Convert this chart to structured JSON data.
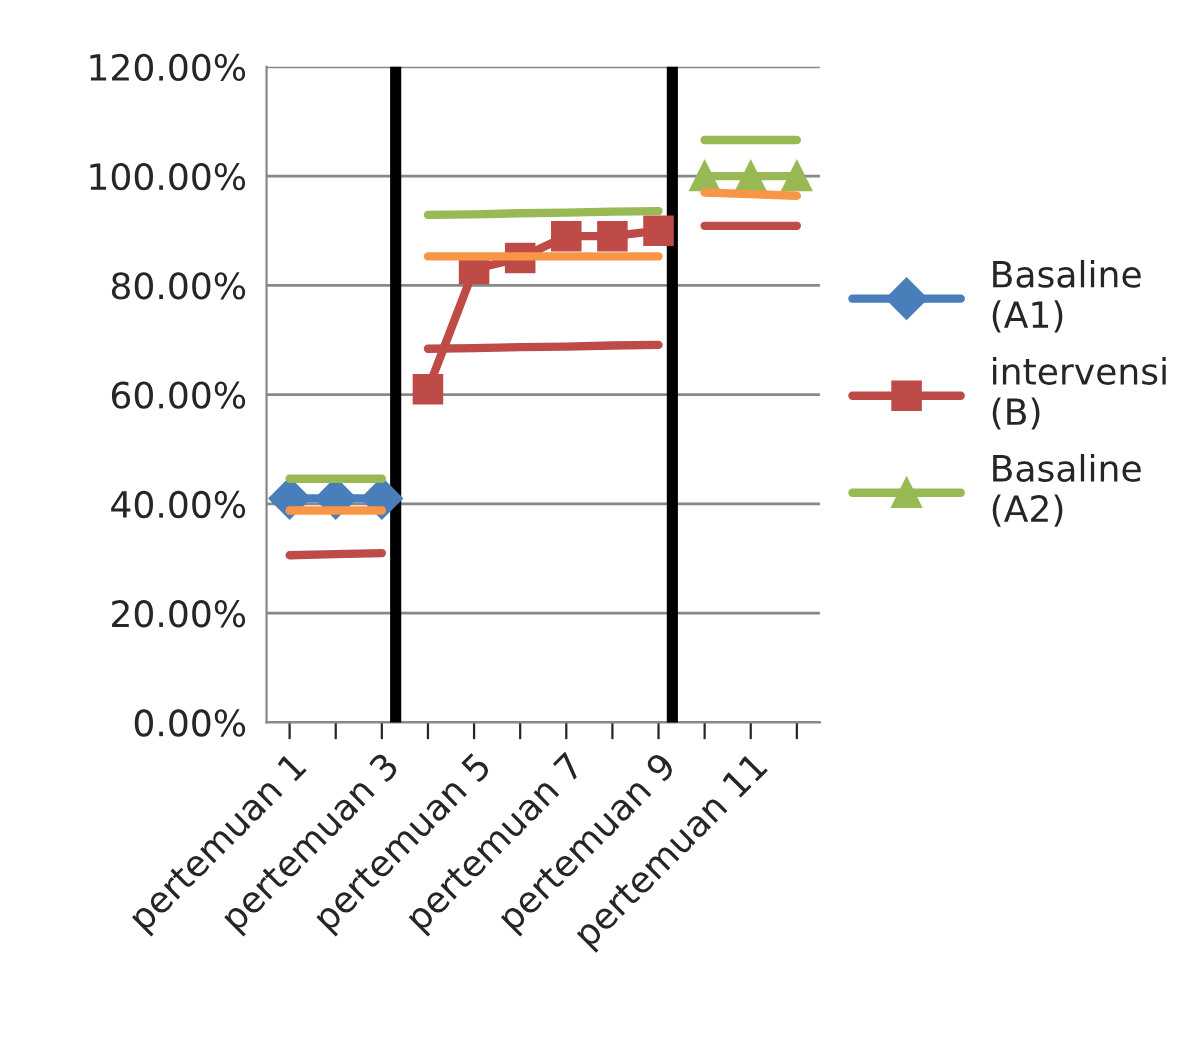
{
  "chart_data": {
    "type": "line",
    "categories": [
      "pertemuan 1",
      null,
      "pertemuan 3",
      null,
      "pertemuan 5",
      null,
      "pertemuan 7",
      null,
      "pertemuan 9",
      null,
      "pertemuan 11",
      null
    ],
    "ylim": [
      0,
      120
    ],
    "yticks": [
      {
        "value": 0,
        "label": "0.00%"
      },
      {
        "value": 20,
        "label": "20.00%"
      },
      {
        "value": 40,
        "label": "40.00%"
      },
      {
        "value": 60,
        "label": "60.00%"
      },
      {
        "value": 80,
        "label": "80.00%"
      },
      {
        "value": 100,
        "label": "100.00%"
      },
      {
        "value": 120,
        "label": "120.00%"
      }
    ],
    "grid": "y",
    "legend": "right",
    "series": [
      {
        "name": "Basaline\n(A1)",
        "color": "#4a7ebb",
        "marker": "diamond",
        "values": [
          41,
          41,
          41,
          null,
          null,
          null,
          null,
          null,
          null,
          null,
          null,
          null
        ]
      },
      {
        "name": "intervensi\n(B)",
        "color": "#be4b48",
        "marker": "square",
        "values": [
          null,
          null,
          null,
          61,
          83,
          85,
          89,
          89,
          90,
          null,
          null,
          null
        ]
      },
      {
        "name": "Basaline\n(A2)",
        "color": "#98b954",
        "marker": "triangle",
        "values": [
          null,
          null,
          null,
          null,
          null,
          null,
          null,
          null,
          null,
          100,
          100,
          100
        ]
      },
      {
        "color": "#98b954",
        "marker": "none",
        "values": [
          44.6,
          44.6,
          44.6,
          null,
          null,
          null,
          null,
          null,
          null,
          null,
          null,
          null
        ]
      },
      {
        "color": "#f79646",
        "marker": "none",
        "values": [
          38.8,
          38.8,
          38.8,
          null,
          null,
          null,
          null,
          null,
          null,
          null,
          null,
          null
        ]
      },
      {
        "color": "#be4b48",
        "marker": "none",
        "values": [
          30.6,
          30.8,
          31,
          null,
          null,
          null,
          null,
          null,
          null,
          null,
          null,
          null
        ]
      },
      {
        "color": "#98b954",
        "marker": "none",
        "values": [
          null,
          null,
          null,
          92.9,
          93,
          93.2,
          93.3,
          93.5,
          93.6,
          null,
          null,
          null
        ]
      },
      {
        "color": "#f79646",
        "marker": "none",
        "values": [
          null,
          null,
          null,
          85.3,
          85.3,
          85.3,
          85.3,
          85.3,
          85.3,
          null,
          null,
          null
        ]
      },
      {
        "color": "#be4b48",
        "marker": "none",
        "values": [
          null,
          null,
          null,
          68.4,
          68.5,
          68.7,
          68.8,
          69,
          69.1,
          null,
          null,
          null
        ]
      },
      {
        "color": "#98b954",
        "marker": "none",
        "values": [
          null,
          null,
          null,
          null,
          null,
          null,
          null,
          null,
          null,
          106.6,
          106.6,
          106.6
        ]
      },
      {
        "color": "#f79646",
        "marker": "none",
        "values": [
          null,
          null,
          null,
          null,
          null,
          null,
          null,
          null,
          null,
          97,
          96.7,
          96.4
        ]
      },
      {
        "color": "#be4b48",
        "marker": "none",
        "values": [
          null,
          null,
          null,
          null,
          null,
          null,
          null,
          null,
          null,
          90.9,
          90.9,
          90.9
        ]
      }
    ]
  }
}
